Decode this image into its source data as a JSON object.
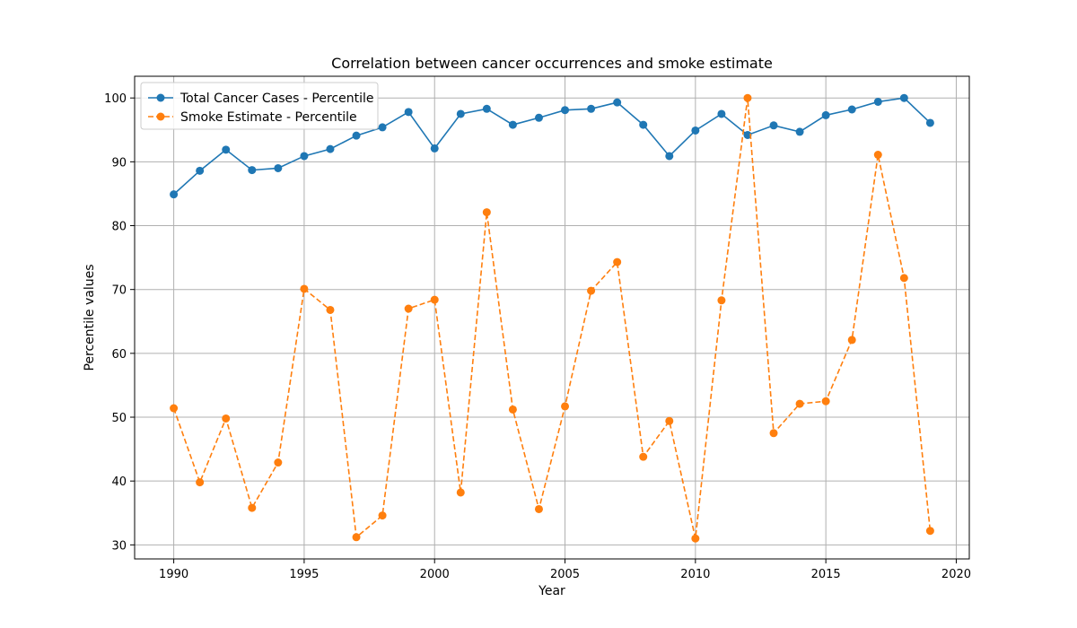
{
  "chart_data": {
    "type": "line",
    "title": "Correlation between cancer occurrences and smoke estimate",
    "xlabel": "Year",
    "ylabel": "Percentile values",
    "xlim": [
      1988.5,
      2020.5
    ],
    "ylim": [
      27.8,
      103.4
    ],
    "xticks": [
      1990,
      1995,
      2000,
      2005,
      2010,
      2015,
      2020
    ],
    "yticks": [
      30,
      40,
      50,
      60,
      70,
      80,
      90,
      100
    ],
    "grid": true,
    "legend_position": "top-left",
    "x": [
      1990,
      1991,
      1992,
      1993,
      1994,
      1995,
      1996,
      1997,
      1998,
      1999,
      2000,
      2001,
      2002,
      2003,
      2004,
      2005,
      2006,
      2007,
      2008,
      2009,
      2010,
      2011,
      2012,
      2013,
      2014,
      2015,
      2016,
      2017,
      2018,
      2019
    ],
    "series": [
      {
        "name": "Total Cancer Cases - Percentile",
        "color": "#1f77b4",
        "style": "solid",
        "values": [
          84.9,
          88.6,
          91.9,
          88.7,
          89.0,
          90.9,
          92.0,
          94.1,
          95.4,
          97.8,
          92.1,
          97.5,
          98.3,
          95.8,
          96.9,
          98.1,
          98.3,
          99.3,
          95.8,
          90.9,
          94.9,
          97.5,
          94.2,
          95.7,
          94.7,
          97.3,
          98.2,
          99.4,
          100.0,
          96.1
        ]
      },
      {
        "name": "Smoke Estimate - Percentile",
        "color": "#ff7f0e",
        "style": "dashed",
        "values": [
          51.4,
          39.8,
          49.8,
          35.8,
          42.9,
          70.1,
          66.8,
          31.2,
          34.6,
          67.0,
          68.4,
          38.2,
          82.1,
          51.2,
          35.6,
          51.7,
          69.8,
          74.3,
          43.8,
          49.4,
          31.0,
          68.3,
          100.0,
          47.5,
          52.1,
          52.5,
          62.1,
          91.1,
          71.8,
          32.2
        ]
      }
    ]
  }
}
